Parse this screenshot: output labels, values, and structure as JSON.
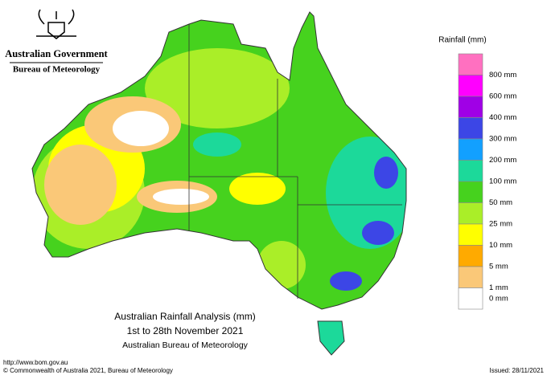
{
  "header": {
    "organisation": "Australian Government",
    "agency": "Bureau of Meteorology"
  },
  "legend": {
    "title": "Rainfall (mm)",
    "colors": [
      "#ff70c0",
      "#ff00ff",
      "#a000e6",
      "#3c46e6",
      "#12a0ff",
      "#1cd99a",
      "#46d21e",
      "#aaee28",
      "#ffff00",
      "#ffaa00",
      "#fac878",
      "#ffffff"
    ],
    "labels": [
      "800 mm",
      "600 mm",
      "400 mm",
      "300 mm",
      "200 mm",
      "100 mm",
      "50 mm",
      "25 mm",
      "10 mm",
      "5 mm",
      "1 mm",
      "0 mm"
    ]
  },
  "caption": {
    "title": "Australian Rainfall Analysis (mm)",
    "period": "1st to 28th November 2021",
    "source": "Australian Bureau of Meteorology"
  },
  "footer": {
    "url": "http://www.bom.gov.au",
    "copyright": "© Commonwealth of Australia 2021, Bureau of Meteorology",
    "issued": "Issued: 28/11/2021"
  }
}
